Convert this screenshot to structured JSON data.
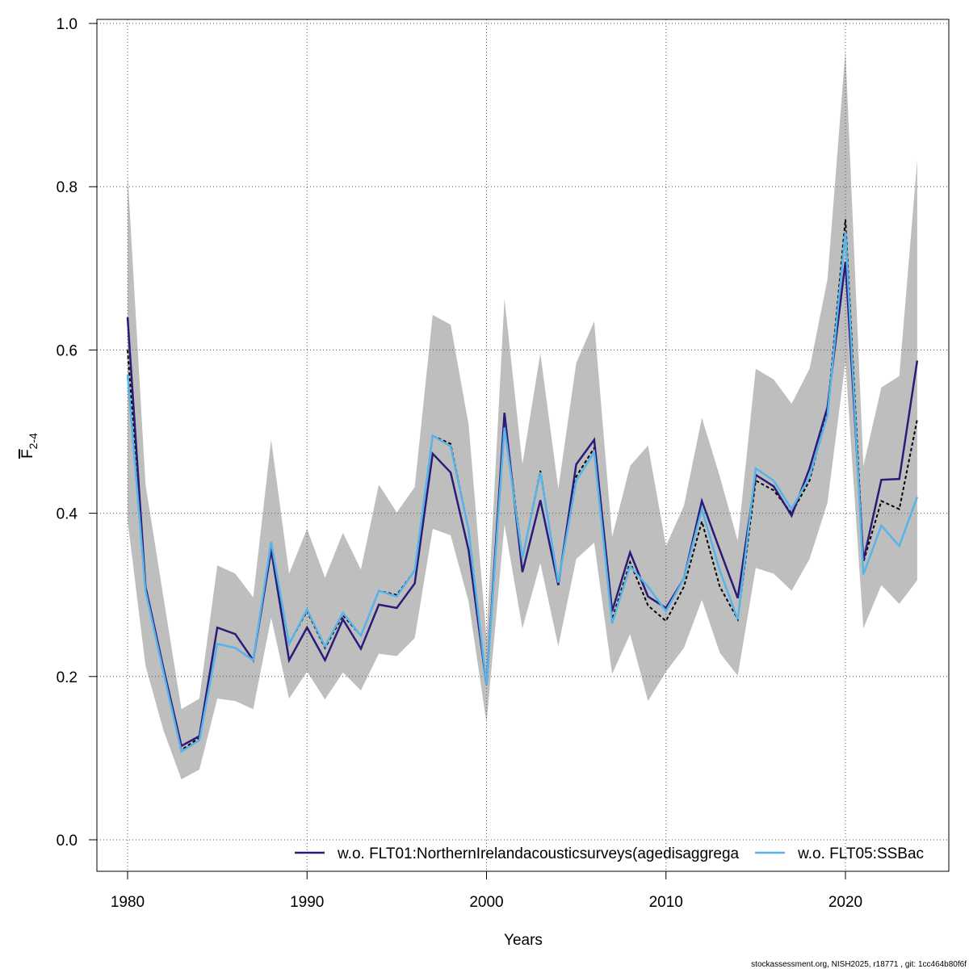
{
  "chart_data": {
    "type": "line",
    "xlabel": "Years",
    "ylabel": "F",
    "ylabel_sub": "2-4",
    "footer": "stockassessment.org, NISH2025, r18771 , git: 1cc464b80f6f",
    "x": [
      1980,
      1981,
      1982,
      1983,
      1984,
      1985,
      1986,
      1987,
      1988,
      1989,
      1990,
      1991,
      1992,
      1993,
      1994,
      1995,
      1996,
      1997,
      1998,
      1999,
      2000,
      2001,
      2002,
      2003,
      2004,
      2005,
      2006,
      2007,
      2008,
      2009,
      2010,
      2011,
      2012,
      2013,
      2014,
      2015,
      2016,
      2017,
      2018,
      2019,
      2020,
      2021,
      2022,
      2023,
      2024
    ],
    "xlim": [
      1978.29,
      2025.76
    ],
    "ylim": [
      -0.0386,
      1.005
    ],
    "xticks": [
      1980,
      1990,
      2000,
      2010,
      2020
    ],
    "yticks": [
      {
        "value": 0,
        "label": "0.0"
      },
      0.2,
      0.4,
      0.6,
      0.8,
      {
        "value": 1,
        "label": "1.0"
      }
    ],
    "grid": true,
    "legend": "bottom",
    "band": {
      "color": "#bebebe",
      "upper": [
        0.816,
        0.435,
        0.297,
        0.16,
        0.173,
        0.336,
        0.326,
        0.297,
        0.49,
        0.326,
        0.381,
        0.321,
        0.376,
        0.331,
        0.435,
        0.401,
        0.432,
        0.643,
        0.631,
        0.509,
        0.247,
        0.663,
        0.46,
        0.596,
        0.43,
        0.584,
        0.635,
        0.371,
        0.458,
        0.483,
        0.36,
        0.409,
        0.517,
        0.445,
        0.366,
        0.577,
        0.564,
        0.534,
        0.577,
        0.687,
        0.967,
        0.458,
        0.554,
        0.568,
        0.833
      ],
      "lower": [
        0.391,
        0.213,
        0.134,
        0.074,
        0.086,
        0.173,
        0.17,
        0.16,
        0.272,
        0.173,
        0.206,
        0.172,
        0.205,
        0.183,
        0.228,
        0.225,
        0.247,
        0.381,
        0.373,
        0.292,
        0.143,
        0.386,
        0.259,
        0.339,
        0.237,
        0.344,
        0.364,
        0.203,
        0.252,
        0.17,
        0.206,
        0.235,
        0.294,
        0.229,
        0.201,
        0.333,
        0.326,
        0.305,
        0.344,
        0.413,
        0.586,
        0.259,
        0.312,
        0.289,
        0.318
      ]
    },
    "series": [
      {
        "color": "#000000",
        "dashed": true,
        "values": [
          0.6,
          0.31,
          0.21,
          0.11,
          0.125,
          0.24,
          0.235,
          0.22,
          0.36,
          0.24,
          0.28,
          0.235,
          0.275,
          0.25,
          0.305,
          0.3,
          0.33,
          0.495,
          0.485,
          0.38,
          0.19,
          0.515,
          0.345,
          0.452,
          0.315,
          0.445,
          0.48,
          0.27,
          0.34,
          0.287,
          0.268,
          0.31,
          0.39,
          0.31,
          0.27,
          0.44,
          0.428,
          0.4,
          0.44,
          0.525,
          0.76,
          0.34,
          0.415,
          0.405,
          0.515
        ]
      },
      {
        "name": "w.o. FLT01:NorthernIrelandacousticsurveys(agedisaggrega",
        "color": "#2a1a7a",
        "values": [
          0.64,
          0.31,
          0.21,
          0.115,
          0.127,
          0.26,
          0.252,
          0.22,
          0.355,
          0.22,
          0.26,
          0.22,
          0.27,
          0.234,
          0.288,
          0.284,
          0.314,
          0.473,
          0.45,
          0.355,
          0.19,
          0.523,
          0.328,
          0.416,
          0.312,
          0.46,
          0.49,
          0.28,
          0.352,
          0.298,
          0.284,
          0.32,
          0.415,
          0.355,
          0.296,
          0.447,
          0.433,
          0.397,
          0.455,
          0.53,
          0.708,
          0.342,
          0.441,
          0.442,
          0.587
        ]
      },
      {
        "name": "w.o. FLT05:SSBac",
        "color": "#56b4e9",
        "values": [
          0.57,
          0.305,
          0.205,
          0.108,
          0.122,
          0.24,
          0.235,
          0.22,
          0.365,
          0.24,
          0.282,
          0.237,
          0.278,
          0.25,
          0.305,
          0.298,
          0.33,
          0.495,
          0.482,
          0.38,
          0.19,
          0.505,
          0.345,
          0.45,
          0.315,
          0.44,
          0.475,
          0.265,
          0.335,
          0.31,
          0.28,
          0.32,
          0.405,
          0.33,
          0.27,
          0.455,
          0.44,
          0.405,
          0.445,
          0.52,
          0.745,
          0.325,
          0.385,
          0.36,
          0.42
        ]
      }
    ]
  }
}
